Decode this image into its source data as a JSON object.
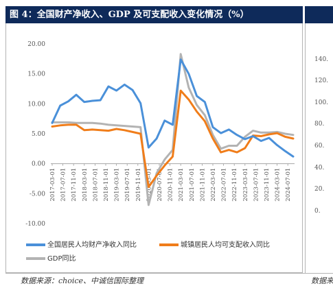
{
  "figure": {
    "title": "图 4：全国财产净收入、GDP 及可支配收入变化情况（%）",
    "source": "数据来源：choice、中诚信国际整理",
    "right_source_fragment": "数据来",
    "right_ticks": [
      "140.",
      "120.",
      "100.",
      "80.",
      "60.",
      "40.",
      "20.",
      "0."
    ]
  },
  "colors": {
    "title_bg": "#0e2a5a",
    "series1": "#4a90d9",
    "series2": "#f07d1a",
    "series3": "#b3b3b3"
  },
  "chart_data": {
    "type": "line",
    "title": "",
    "ylim": [
      -10,
      20
    ],
    "yticks": [
      "20.00",
      "15.00",
      "10.00",
      "5.00",
      "0.00",
      "-5.00",
      "-10.00"
    ],
    "grid": false,
    "legend_position": "bottom",
    "x": [
      "2017-03-01",
      "2017-06-01",
      "2017-09-01",
      "2017-12-01",
      "2018-03-01",
      "2018-06-01",
      "2018-09-01",
      "2018-12-01",
      "2019-03-01",
      "2019-06-01",
      "2019-09-01",
      "2019-12-01",
      "2020-03-01",
      "2020-06-01",
      "2020-09-01",
      "2020-12-01",
      "2021-03-01",
      "2021-06-01",
      "2021-09-01",
      "2021-12-01",
      "2022-03-01",
      "2022-06-01",
      "2022-09-01",
      "2022-12-01",
      "2023-03-01",
      "2023-06-01",
      "2023-09-01",
      "2023-12-01",
      "2024-03-01",
      "2024-06-01",
      "2024-09-01"
    ],
    "xtick_labels": [
      "2017-03-01",
      "2017-07-01",
      "2017-11-01",
      "2018-03-01",
      "2018-07-01",
      "2018-11-01",
      "2019-03-01",
      "2019-07-01",
      "2019-11-01",
      "2020-03-01",
      "2020-07-01",
      "2020-11-01",
      "2021-03-01",
      "2021-07-01",
      "2021-11-01",
      "2022-03-01",
      "2022-07-01",
      "2022-11-01",
      "2023-03-01",
      "2023-07-01",
      "2023-11-01",
      "2024-03-01",
      "2024-07-01"
    ],
    "series": [
      {
        "name": "全国居民人均财产净收入同比",
        "values": [
          6.8,
          9.7,
          10.4,
          11.5,
          10.3,
          10.5,
          10.6,
          12.9,
          12.2,
          13.2,
          12.3,
          10.1,
          2.7,
          4.2,
          7.2,
          6.5,
          17.4,
          15.0,
          11.3,
          10.3,
          6.1,
          5.1,
          5.7,
          4.8,
          4.1,
          4.6,
          3.8,
          4.3,
          3.1,
          2.1,
          1.2
        ]
      },
      {
        "name": "城镇居民人均可支配收入同比",
        "values": [
          6.2,
          6.4,
          6.5,
          6.5,
          5.6,
          5.7,
          5.6,
          5.5,
          5.8,
          5.6,
          5.3,
          5.0,
          -3.9,
          -2.0,
          -0.3,
          1.2,
          12.2,
          10.7,
          8.7,
          7.1,
          4.2,
          1.9,
          2.3,
          1.9,
          2.6,
          4.7,
          4.6,
          4.9,
          5.1,
          4.5,
          4.2
        ]
      },
      {
        "name": "GDP同比",
        "values": [
          6.9,
          6.9,
          6.9,
          6.8,
          6.8,
          6.8,
          6.7,
          6.5,
          6.4,
          6.3,
          6.2,
          6.1,
          -6.9,
          -1.6,
          0.7,
          2.3,
          18.3,
          12.7,
          9.8,
          8.1,
          4.8,
          2.5,
          3.0,
          3.0,
          4.5,
          5.5,
          5.2,
          5.2,
          5.3,
          5.0,
          4.8
        ]
      }
    ]
  }
}
